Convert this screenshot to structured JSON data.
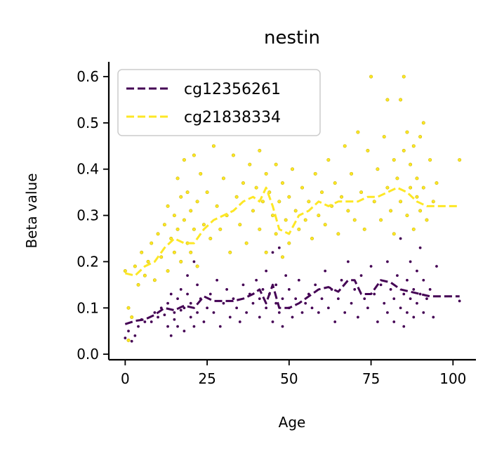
{
  "chart_data": {
    "type": "scatter",
    "title": "nestin",
    "xlabel": "Age",
    "ylabel": "Beta value",
    "xlim": [
      -5,
      107
    ],
    "ylim": [
      -0.012,
      0.632
    ],
    "xticks": [
      0,
      25,
      50,
      75,
      100
    ],
    "xtick_labels": [
      "0",
      "25",
      "50",
      "75",
      "100"
    ],
    "yticks": [
      0.0,
      0.1,
      0.2,
      0.3,
      0.4,
      0.5,
      0.6
    ],
    "ytick_labels": [
      "0.0",
      "0.1",
      "0.2",
      "0.3",
      "0.4",
      "0.5",
      "0.6"
    ],
    "legend_position": "top-left",
    "series": [
      {
        "name": "cg12356261",
        "color": "#440154",
        "trend": [
          [
            0,
            0.065
          ],
          [
            3,
            0.072
          ],
          [
            6,
            0.075
          ],
          [
            9,
            0.085
          ],
          [
            12,
            0.1
          ],
          [
            15,
            0.095
          ],
          [
            18,
            0.105
          ],
          [
            21,
            0.1
          ],
          [
            24,
            0.125
          ],
          [
            27,
            0.115
          ],
          [
            30,
            0.115
          ],
          [
            33,
            0.115
          ],
          [
            36,
            0.12
          ],
          [
            39,
            0.13
          ],
          [
            41,
            0.14
          ],
          [
            43,
            0.11
          ],
          [
            45,
            0.15
          ],
          [
            47,
            0.1
          ],
          [
            50,
            0.1
          ],
          [
            53,
            0.11
          ],
          [
            56,
            0.125
          ],
          [
            59,
            0.14
          ],
          [
            62,
            0.145
          ],
          [
            65,
            0.135
          ],
          [
            68,
            0.16
          ],
          [
            70,
            0.16
          ],
          [
            72,
            0.13
          ],
          [
            75,
            0.13
          ],
          [
            78,
            0.16
          ],
          [
            81,
            0.155
          ],
          [
            84,
            0.14
          ],
          [
            87,
            0.135
          ],
          [
            90,
            0.13
          ],
          [
            93,
            0.125
          ],
          [
            97,
            0.125
          ],
          [
            102,
            0.125
          ]
        ],
        "points": [
          [
            0,
            0.035
          ],
          [
            1,
            0.03
          ],
          [
            1,
            0.05
          ],
          [
            2,
            0.028
          ],
          [
            3,
            0.04
          ],
          [
            4,
            0.06
          ],
          [
            5,
            0.075
          ],
          [
            6,
            0.07
          ],
          [
            8,
            0.07
          ],
          [
            9,
            0.09
          ],
          [
            10,
            0.08
          ],
          [
            11,
            0.1
          ],
          [
            12,
            0.085
          ],
          [
            13,
            0.11
          ],
          [
            13,
            0.06
          ],
          [
            14,
            0.04
          ],
          [
            14,
            0.13
          ],
          [
            15,
            0.09
          ],
          [
            15,
            0.075
          ],
          [
            16,
            0.12
          ],
          [
            16,
            0.06
          ],
          [
            17,
            0.14
          ],
          [
            17,
            0.095
          ],
          [
            18,
            0.1
          ],
          [
            18,
            0.05
          ],
          [
            19,
            0.13
          ],
          [
            19,
            0.17
          ],
          [
            20,
            0.08
          ],
          [
            20,
            0.11
          ],
          [
            21,
            0.2
          ],
          [
            21,
            0.06
          ],
          [
            22,
            0.09
          ],
          [
            22,
            0.15
          ],
          [
            23,
            0.12
          ],
          [
            24,
            0.07
          ],
          [
            25,
            0.1
          ],
          [
            26,
            0.13
          ],
          [
            27,
            0.09
          ],
          [
            28,
            0.16
          ],
          [
            29,
            0.06
          ],
          [
            30,
            0.11
          ],
          [
            31,
            0.14
          ],
          [
            32,
            0.08
          ],
          [
            33,
            0.12
          ],
          [
            34,
            0.1
          ],
          [
            35,
            0.07
          ],
          [
            36,
            0.15
          ],
          [
            37,
            0.09
          ],
          [
            38,
            0.13
          ],
          [
            39,
            0.11
          ],
          [
            40,
            0.16
          ],
          [
            41,
            0.08
          ],
          [
            41,
            0.12
          ],
          [
            42,
            0.14
          ],
          [
            43,
            0.1
          ],
          [
            43,
            0.18
          ],
          [
            44,
            0.13
          ],
          [
            45,
            0.07
          ],
          [
            45,
            0.22
          ],
          [
            46,
            0.15
          ],
          [
            46,
            0.11
          ],
          [
            47,
            0.09
          ],
          [
            47,
            0.23
          ],
          [
            48,
            0.12
          ],
          [
            48,
            0.06
          ],
          [
            49,
            0.17
          ],
          [
            50,
            0.1
          ],
          [
            50,
            0.14
          ],
          [
            51,
            0.08
          ],
          [
            52,
            0.12
          ],
          [
            53,
            0.16
          ],
          [
            54,
            0.09
          ],
          [
            55,
            0.11
          ],
          [
            56,
            0.13
          ],
          [
            57,
            0.1
          ],
          [
            58,
            0.15
          ],
          [
            59,
            0.09
          ],
          [
            60,
            0.12
          ],
          [
            61,
            0.18
          ],
          [
            62,
            0.1
          ],
          [
            63,
            0.14
          ],
          [
            64,
            0.07
          ],
          [
            65,
            0.12
          ],
          [
            66,
            0.16
          ],
          [
            67,
            0.09
          ],
          [
            68,
            0.2
          ],
          [
            69,
            0.11
          ],
          [
            70,
            0.14
          ],
          [
            71,
            0.08
          ],
          [
            72,
            0.17
          ],
          [
            73,
            0.12
          ],
          [
            74,
            0.1
          ],
          [
            75,
            0.19
          ],
          [
            76,
            0.13
          ],
          [
            77,
            0.07
          ],
          [
            78,
            0.15
          ],
          [
            79,
            0.11
          ],
          [
            80,
            0.2
          ],
          [
            80,
            0.09
          ],
          [
            81,
            0.14
          ],
          [
            82,
            0.12
          ],
          [
            82,
            0.07
          ],
          [
            83,
            0.17
          ],
          [
            84,
            0.1
          ],
          [
            84,
            0.25
          ],
          [
            85,
            0.13
          ],
          [
            85,
            0.06
          ],
          [
            86,
            0.16
          ],
          [
            86,
            0.09
          ],
          [
            87,
            0.12
          ],
          [
            87,
            0.2
          ],
          [
            88,
            0.14
          ],
          [
            88,
            0.08
          ],
          [
            89,
            0.18
          ],
          [
            89,
            0.11
          ],
          [
            90,
            0.13
          ],
          [
            90,
            0.23
          ],
          [
            91,
            0.09
          ],
          [
            91,
            0.16
          ],
          [
            92,
            0.12
          ],
          [
            93,
            0.14
          ],
          [
            94,
            0.08
          ],
          [
            95,
            0.19
          ],
          [
            102,
            0.115
          ]
        ]
      },
      {
        "name": "cg21838334",
        "color": "#fde725",
        "trend": [
          [
            0,
            0.175
          ],
          [
            3,
            0.17
          ],
          [
            6,
            0.19
          ],
          [
            9,
            0.2
          ],
          [
            12,
            0.23
          ],
          [
            15,
            0.25
          ],
          [
            18,
            0.24
          ],
          [
            21,
            0.24
          ],
          [
            24,
            0.27
          ],
          [
            27,
            0.29
          ],
          [
            30,
            0.3
          ],
          [
            33,
            0.31
          ],
          [
            36,
            0.33
          ],
          [
            39,
            0.34
          ],
          [
            41,
            0.33
          ],
          [
            43,
            0.36
          ],
          [
            45,
            0.32
          ],
          [
            47,
            0.27
          ],
          [
            50,
            0.26
          ],
          [
            53,
            0.3
          ],
          [
            56,
            0.31
          ],
          [
            59,
            0.33
          ],
          [
            62,
            0.32
          ],
          [
            65,
            0.33
          ],
          [
            68,
            0.33
          ],
          [
            71,
            0.33
          ],
          [
            74,
            0.34
          ],
          [
            77,
            0.34
          ],
          [
            80,
            0.35
          ],
          [
            83,
            0.36
          ],
          [
            86,
            0.35
          ],
          [
            89,
            0.33
          ],
          [
            92,
            0.32
          ],
          [
            96,
            0.32
          ],
          [
            102,
            0.32
          ]
        ],
        "points": [
          [
            0,
            0.18
          ],
          [
            1,
            0.1
          ],
          [
            1,
            0.03
          ],
          [
            2,
            0.08
          ],
          [
            3,
            0.19
          ],
          [
            4,
            0.15
          ],
          [
            5,
            0.22
          ],
          [
            6,
            0.17
          ],
          [
            7,
            0.2
          ],
          [
            8,
            0.24
          ],
          [
            9,
            0.16
          ],
          [
            10,
            0.26
          ],
          [
            11,
            0.21
          ],
          [
            12,
            0.28
          ],
          [
            13,
            0.18
          ],
          [
            13,
            0.32
          ],
          [
            14,
            0.25
          ],
          [
            15,
            0.3
          ],
          [
            15,
            0.22
          ],
          [
            16,
            0.38
          ],
          [
            16,
            0.27
          ],
          [
            17,
            0.2
          ],
          [
            17,
            0.34
          ],
          [
            18,
            0.29
          ],
          [
            18,
            0.42
          ],
          [
            19,
            0.24
          ],
          [
            19,
            0.35
          ],
          [
            20,
            0.31
          ],
          [
            20,
            0.22
          ],
          [
            21,
            0.43
          ],
          [
            21,
            0.27
          ],
          [
            22,
            0.33
          ],
          [
            22,
            0.19
          ],
          [
            23,
            0.39
          ],
          [
            24,
            0.28
          ],
          [
            25,
            0.35
          ],
          [
            26,
            0.25
          ],
          [
            27,
            0.45
          ],
          [
            28,
            0.32
          ],
          [
            29,
            0.27
          ],
          [
            30,
            0.38
          ],
          [
            31,
            0.3
          ],
          [
            32,
            0.22
          ],
          [
            33,
            0.43
          ],
          [
            34,
            0.34
          ],
          [
            35,
            0.28
          ],
          [
            36,
            0.37
          ],
          [
            37,
            0.24
          ],
          [
            38,
            0.41
          ],
          [
            39,
            0.31
          ],
          [
            40,
            0.36
          ],
          [
            41,
            0.27
          ],
          [
            41,
            0.44
          ],
          [
            42,
            0.33
          ],
          [
            43,
            0.39
          ],
          [
            43,
            0.22
          ],
          [
            44,
            0.35
          ],
          [
            45,
            0.3
          ],
          [
            46,
            0.41
          ],
          [
            46,
            0.26
          ],
          [
            47,
            0.33
          ],
          [
            48,
            0.37
          ],
          [
            48,
            0.21
          ],
          [
            49,
            0.29
          ],
          [
            50,
            0.34
          ],
          [
            50,
            0.24
          ],
          [
            51,
            0.4
          ],
          [
            52,
            0.31
          ],
          [
            53,
            0.27
          ],
          [
            54,
            0.36
          ],
          [
            55,
            0.29
          ],
          [
            56,
            0.33
          ],
          [
            57,
            0.25
          ],
          [
            58,
            0.39
          ],
          [
            59,
            0.3
          ],
          [
            60,
            0.35
          ],
          [
            61,
            0.28
          ],
          [
            62,
            0.42
          ],
          [
            63,
            0.32
          ],
          [
            64,
            0.37
          ],
          [
            65,
            0.26
          ],
          [
            66,
            0.34
          ],
          [
            67,
            0.45
          ],
          [
            68,
            0.31
          ],
          [
            69,
            0.39
          ],
          [
            70,
            0.29
          ],
          [
            71,
            0.48
          ],
          [
            72,
            0.35
          ],
          [
            73,
            0.27
          ],
          [
            74,
            0.44
          ],
          [
            75,
            0.6
          ],
          [
            76,
            0.33
          ],
          [
            77,
            0.4
          ],
          [
            78,
            0.29
          ],
          [
            79,
            0.47
          ],
          [
            80,
            0.36
          ],
          [
            80,
            0.55
          ],
          [
            81,
            0.31
          ],
          [
            82,
            0.42
          ],
          [
            82,
            0.26
          ],
          [
            83,
            0.38
          ],
          [
            84,
            0.55
          ],
          [
            84,
            0.33
          ],
          [
            85,
            0.6
          ],
          [
            85,
            0.44
          ],
          [
            86,
            0.3
          ],
          [
            86,
            0.48
          ],
          [
            87,
            0.36
          ],
          [
            87,
            0.41
          ],
          [
            88,
            0.27
          ],
          [
            88,
            0.45
          ],
          [
            89,
            0.34
          ],
          [
            89,
            0.38
          ],
          [
            90,
            0.31
          ],
          [
            90,
            0.47
          ],
          [
            91,
            0.36
          ],
          [
            91,
            0.5
          ],
          [
            92,
            0.29
          ],
          [
            93,
            0.42
          ],
          [
            94,
            0.33
          ],
          [
            95,
            0.37
          ],
          [
            102,
            0.42
          ]
        ]
      }
    ]
  }
}
